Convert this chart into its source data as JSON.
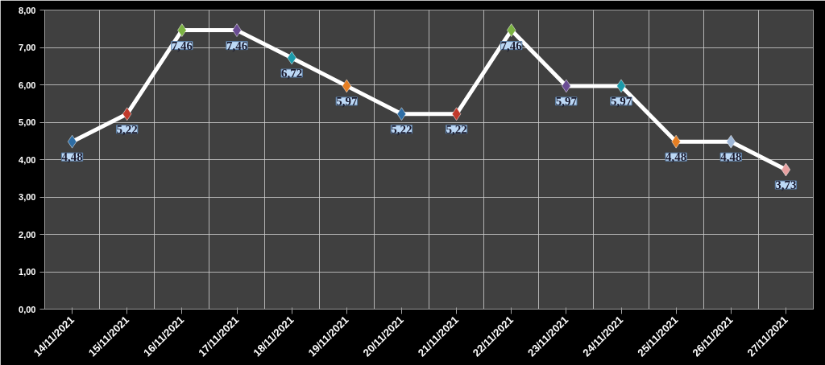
{
  "chart_data": {
    "type": "line",
    "categories": [
      "14/11/2021",
      "15/11/2021",
      "16/11/2021",
      "17/11/2021",
      "18/11/2021",
      "19/11/2021",
      "20/11/2021",
      "21/11/2021",
      "22/11/2021",
      "23/11/2021",
      "24/11/2021",
      "25/11/2021",
      "26/11/2021",
      "27/11/2021"
    ],
    "series": [
      {
        "color": "#ffffff",
        "values": [
          4.48,
          5.22,
          7.46,
          7.46,
          6.72,
          5.97,
          5.22,
          5.22,
          7.46,
          5.97,
          5.97,
          4.48,
          4.48,
          3.73
        ],
        "colors": [
          "#2e6da4",
          "#c0392b",
          "#7cb342",
          "#6a4c93",
          "#1b9aaa",
          "#e67e22",
          "#2e6da4",
          "#c0392b",
          "#7cb342",
          "#6a4c93",
          "#1b9aaa",
          "#e67e22",
          "#a0b8d8",
          "#e8a0a0"
        ],
        "value_labels": [
          "4,48",
          "5,22",
          "7,46",
          "7,46",
          "6,72",
          "5,97",
          "5,22",
          "5,22",
          "7,46",
          "5,97",
          "5,97",
          "4,48",
          "4,48",
          "3,73"
        ]
      }
    ],
    "ylim": [
      0,
      8
    ],
    "yticks": [
      {
        "value": 0,
        "label": "0,00"
      },
      {
        "value": 1,
        "label": "1,00"
      },
      {
        "value": 2,
        "label": "2,00"
      },
      {
        "value": 3,
        "label": "3,00"
      },
      {
        "value": 4,
        "label": "4,00"
      },
      {
        "value": 5,
        "label": "5,00"
      },
      {
        "value": 6,
        "label": "6,00"
      },
      {
        "value": 7,
        "label": "7,00"
      },
      {
        "value": 8,
        "label": "8,00"
      }
    ],
    "grid": true,
    "marker": "diamond",
    "line_style": "solid"
  }
}
